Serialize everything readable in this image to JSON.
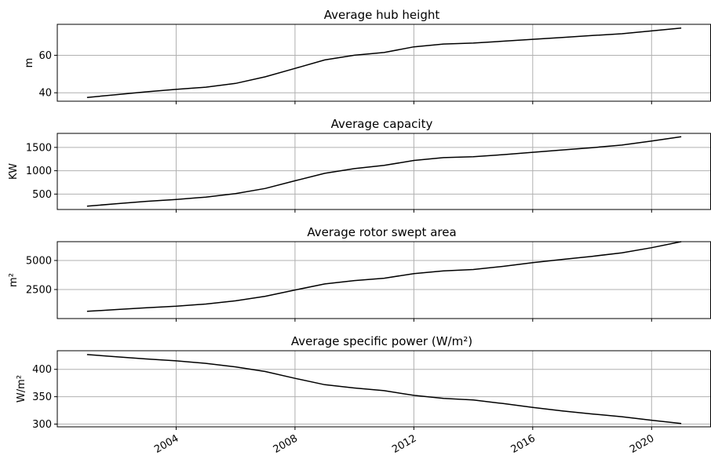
{
  "chart_data": [
    {
      "type": "line",
      "title": "Average hub height",
      "ylabel": "m",
      "x": [
        2001,
        2002,
        2003,
        2004,
        2005,
        2006,
        2007,
        2008,
        2009,
        2010,
        2011,
        2012,
        2013,
        2014,
        2015,
        2016,
        2017,
        2018,
        2019,
        2020,
        2021
      ],
      "values": [
        37.5,
        39,
        40.5,
        41.8,
        43,
        45,
        48.5,
        53,
        57.5,
        60,
        61.5,
        64.5,
        66,
        66.5,
        67.5,
        68.5,
        69.5,
        70.5,
        71.5,
        73,
        74.5
      ],
      "ylim": [
        35.5,
        76.5
      ],
      "yticks": [
        40,
        60
      ],
      "grid": true
    },
    {
      "type": "line",
      "title": "Average capacity",
      "ylabel": "KW",
      "x": [
        2001,
        2002,
        2003,
        2004,
        2005,
        2006,
        2007,
        2008,
        2009,
        2010,
        2011,
        2012,
        2013,
        2014,
        2015,
        2016,
        2017,
        2018,
        2019,
        2020,
        2021
      ],
      "values": [
        240,
        295,
        345,
        385,
        435,
        510,
        620,
        785,
        945,
        1045,
        1115,
        1220,
        1280,
        1300,
        1345,
        1395,
        1445,
        1495,
        1550,
        1635,
        1730
      ],
      "ylim": [
        170,
        1800
      ],
      "yticks": [
        500,
        1000,
        1500
      ],
      "grid": true
    },
    {
      "type": "line",
      "title": "Average rotor swept area",
      "ylabel": "m²",
      "x": [
        2001,
        2002,
        2003,
        2004,
        2005,
        2006,
        2007,
        2008,
        2009,
        2010,
        2011,
        2012,
        2013,
        2014,
        2015,
        2016,
        2017,
        2018,
        2019,
        2020,
        2021
      ],
      "values": [
        620,
        780,
        930,
        1060,
        1250,
        1530,
        1920,
        2460,
        2980,
        3270,
        3470,
        3870,
        4110,
        4220,
        4490,
        4810,
        5090,
        5360,
        5660,
        6100,
        6620
      ],
      "ylim": [
        0,
        6620
      ],
      "yticks": [
        2500,
        5000
      ],
      "grid": true
    },
    {
      "type": "line",
      "title": "Average specific power (W/m²)",
      "ylabel": "W/m²",
      "x": [
        2001,
        2002,
        2003,
        2004,
        2005,
        2006,
        2007,
        2008,
        2009,
        2010,
        2011,
        2012,
        2013,
        2014,
        2015,
        2016,
        2017,
        2018,
        2019,
        2020,
        2021
      ],
      "values": [
        427,
        423,
        419,
        415.5,
        411,
        404.5,
        396,
        383.5,
        372,
        366,
        361,
        352.5,
        347,
        344,
        337.5,
        330.5,
        324,
        318.5,
        313.5,
        307,
        301
      ],
      "ylim": [
        295,
        434
      ],
      "yticks": [
        300,
        350,
        400
      ],
      "grid": true
    }
  ],
  "x_axis": {
    "xlim": [
      2000.0,
      2022.0
    ],
    "ticks": [
      2004,
      2008,
      2012,
      2016,
      2020
    ],
    "tick_labels": [
      "2004",
      "2008",
      "2012",
      "2016",
      "2020"
    ],
    "label_rotation": "30deg"
  }
}
